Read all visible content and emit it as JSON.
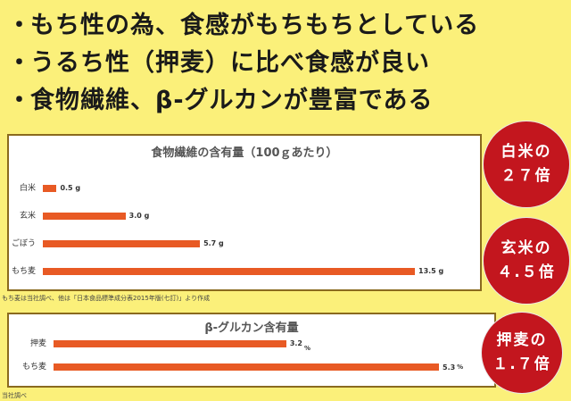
{
  "bullets": [
    "もち性の為、食感がもちもちとしている",
    "うるち性（押麦）に比べ食感が良い",
    "食物繊維、β-グルカンが豊富である"
  ],
  "bullet_mark": "・",
  "badges": [
    {
      "line1": "白米の",
      "line2": "２７倍"
    },
    {
      "line1": "玄米の",
      "line2": "４.５倍"
    },
    {
      "line1": "押麦の",
      "line2": "１.７倍"
    }
  ],
  "notes": {
    "source1": "もち麦は当社調べ、他は「日本食品標準成分表2015年版(七訂)」より作成",
    "source2": "当社調べ"
  },
  "colors": {
    "bar": "#e85a24",
    "badge": "#c3161e",
    "background": "#fbf07a"
  },
  "chart_data": [
    {
      "type": "bar",
      "title": "食物繊維の含有量（100ｇあたり）",
      "categories": [
        "白米",
        "玄米",
        "ごぼう",
        "もち麦"
      ],
      "values": [
        0.5,
        3.0,
        5.7,
        13.5
      ],
      "value_labels": [
        "0.5 g",
        "3.0 g",
        "5.7 g",
        "13.5 g"
      ],
      "max": 13.5
    },
    {
      "type": "bar",
      "title": "β-グルカン含有量",
      "categories": [
        "押麦",
        "もち麦"
      ],
      "values": [
        3.2,
        5.3
      ],
      "value_labels": [
        "3.2",
        "5.3"
      ],
      "units": [
        "%",
        "%"
      ],
      "max": 5.3
    }
  ]
}
